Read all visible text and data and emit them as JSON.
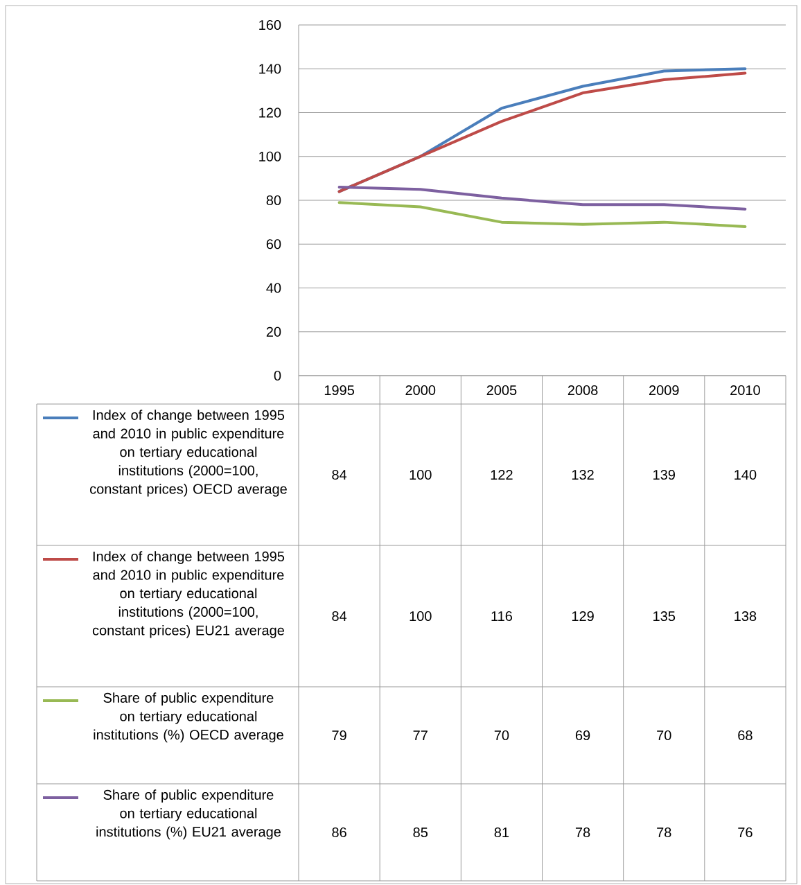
{
  "chart_data": {
    "type": "line",
    "categories": [
      "1995",
      "2000",
      "2005",
      "2008",
      "2009",
      "2010"
    ],
    "series": [
      {
        "name": "Index of change between 1995 and 2010 in public expenditure on tertiary educational institutions (2000=100, constant prices) OECD average",
        "color": "#4a7ebb",
        "values": [
          84,
          100,
          122,
          132,
          139,
          140
        ]
      },
      {
        "name": "Index of change between 1995 and 2010 in public expenditure on tertiary educational institutions (2000=100, constant prices) EU21 average",
        "color": "#be4b48",
        "values": [
          84,
          100,
          116,
          129,
          135,
          138
        ]
      },
      {
        "name": "Share of public expenditure on tertiary educational institutions (%) OECD average",
        "color": "#98b954",
        "values": [
          79,
          77,
          70,
          69,
          70,
          68
        ]
      },
      {
        "name": "Share of public expenditure on tertiary educational institutions (%) EU21 average",
        "color": "#7d60a0",
        "values": [
          86,
          85,
          81,
          78,
          78,
          76
        ]
      }
    ],
    "ylim": [
      0,
      160
    ],
    "yticks": [
      0,
      20,
      40,
      60,
      80,
      100,
      120,
      140,
      160
    ],
    "grid": "y",
    "legend": "bottom",
    "data_labels": true
  }
}
